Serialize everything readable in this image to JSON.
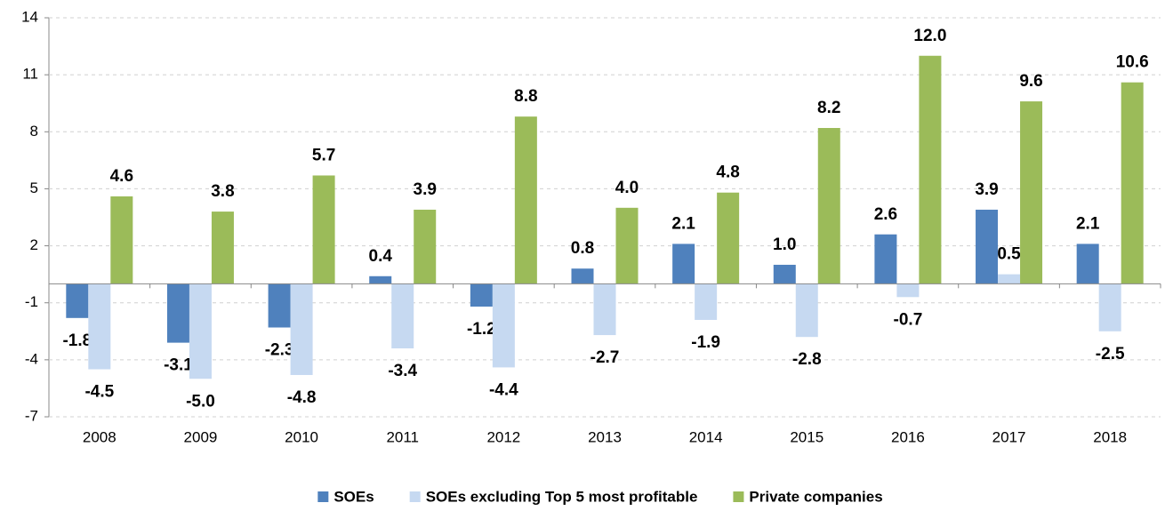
{
  "chart_data": {
    "type": "bar",
    "categories": [
      "2008",
      "2009",
      "2010",
      "2011",
      "2012",
      "2013",
      "2014",
      "2015",
      "2016",
      "2017",
      "2018"
    ],
    "series": [
      {
        "name": "SOEs",
        "color": "#4f81bd",
        "values": [
          -1.8,
          -3.1,
          -2.3,
          0.4,
          -1.2,
          0.8,
          2.1,
          1.0,
          2.6,
          3.9,
          2.1
        ],
        "value_labels": [
          "-1.8",
          "-3.1",
          "-2.3",
          "0.4",
          "-1.2",
          "0.8",
          "2.1",
          "1.0",
          "2.6",
          "3.9",
          "2.1"
        ]
      },
      {
        "name": "SOEs excluding Top 5 most profitable",
        "color": "#c6d9f1",
        "values": [
          -4.5,
          -5.0,
          -4.8,
          -3.4,
          -4.4,
          -2.7,
          -1.9,
          -2.8,
          -0.7,
          0.5,
          -2.5
        ],
        "value_labels": [
          "-4.5",
          "-5.0",
          "-4.8",
          "-3.4",
          "-4.4",
          "-2.7",
          "-1.9",
          "-2.8",
          "-0.7",
          "0.5",
          "-2.5"
        ]
      },
      {
        "name": "Private companies",
        "color": "#9bbb59",
        "values": [
          4.6,
          3.8,
          5.7,
          3.9,
          8.8,
          4.0,
          4.8,
          8.2,
          12.0,
          9.6,
          10.6
        ],
        "value_labels": [
          "4.6",
          "3.8",
          "5.7",
          "3.9",
          "8.8",
          "4.0",
          "4.8",
          "8.2",
          "12.0",
          "9.6",
          "10.6"
        ]
      }
    ],
    "ylim": [
      -7,
      14
    ],
    "yticks": [
      -7,
      -4,
      -1,
      2,
      5,
      8,
      11,
      14
    ],
    "grid": true,
    "legend": "bottom"
  }
}
